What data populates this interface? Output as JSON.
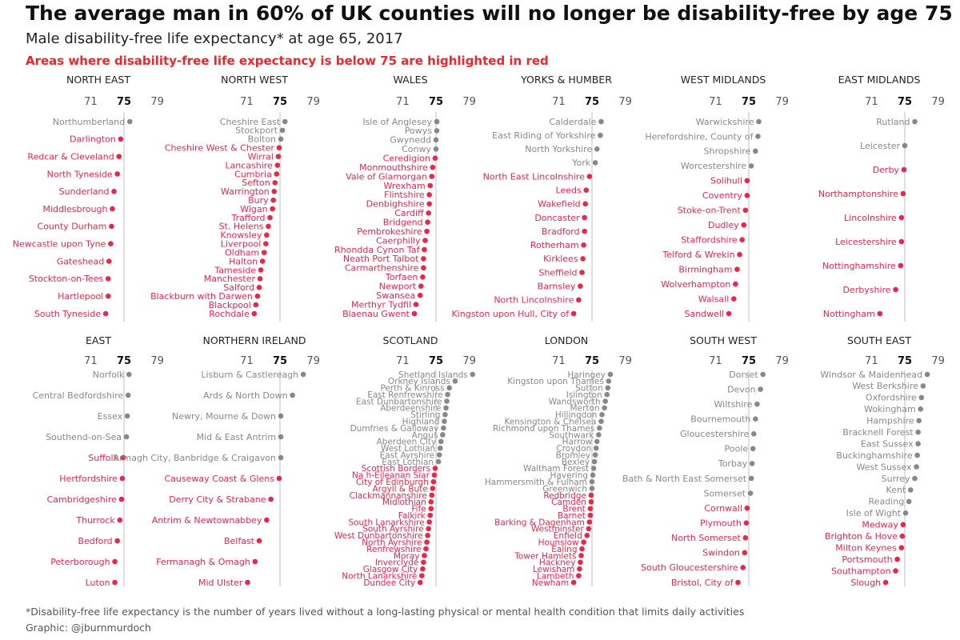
{
  "header": {
    "title": "The average man in 60% of UK counties will no longer be disability-free by age 75",
    "subtitle": "Male disability-free life expectancy* at age 65, 2017",
    "highlight_note": "Areas where disability-free life expectancy is below 75 are highlighted in red"
  },
  "footer": {
    "footnote": "*Disability-free life expectancy is the number of years lived without a long-lasting physical or mental health condition that limits daily activities",
    "credit": "Graphic: @jburnmurdoch"
  },
  "colors": {
    "below_75": "#e8284a",
    "above_75": "#888888",
    "reference_line": "#cccccc"
  },
  "chart_data": [
    {
      "type": "scatter",
      "title": "NORTH EAST",
      "xticks": [
        71,
        75,
        79
      ],
      "reference_x": 75,
      "labels": [
        "Northumberland",
        "Darlington",
        "Redcar & Cleveland",
        "North Tyneside",
        "Sunderland",
        "Middlesbrough",
        "County Durham",
        "Newcastle upon Tyne",
        "Gateshead",
        "Stockton-on-Tees",
        "Hartlepool",
        "South Tyneside"
      ],
      "values": [
        75.7,
        74.6,
        74.4,
        74.2,
        73.8,
        73.6,
        73.5,
        73.4,
        73.2,
        73.1,
        73.1,
        72.8
      ]
    },
    {
      "type": "scatter",
      "title": "NORTH WEST",
      "xticks": [
        71,
        75,
        79
      ],
      "reference_x": 75,
      "labels": [
        "Cheshire East",
        "Stockport",
        "Bolton",
        "Cheshire West & Chester",
        "Wirral",
        "Lancashire",
        "Cumbria",
        "Sefton",
        "Warrington",
        "Bury",
        "Wigan",
        "Trafford",
        "St. Helens",
        "Knowsley",
        "Liverpool",
        "Oldham",
        "Halton",
        "Tameside",
        "Manchester",
        "Salford",
        "Blackburn with Darwen",
        "Blackpool",
        "Rochdale"
      ],
      "values": [
        75.6,
        75.3,
        75.1,
        74.9,
        74.8,
        74.7,
        74.6,
        74.4,
        74.3,
        74.2,
        74.1,
        73.8,
        73.6,
        73.4,
        73.3,
        73.1,
        72.9,
        72.7,
        72.6,
        72.5,
        72.3,
        72.1,
        71.9
      ]
    },
    {
      "type": "scatter",
      "title": "WALES",
      "xticks": [
        71,
        75,
        79
      ],
      "reference_x": 75,
      "labels": [
        "Isle of Anglesey",
        "Powys",
        "Gwynedd",
        "Conwy",
        "Ceredigion",
        "Monmouthshire",
        "Vale of Glamorgan",
        "Wrexham",
        "Flintshire",
        "Denbighshire",
        "Cardiff",
        "Bridgend",
        "Pembrokeshire",
        "Caerphilly",
        "Rhondda Cynon Taf",
        "Neath Port Talbot",
        "Carmarthenshire",
        "Torfaen",
        "Newport",
        "Swansea",
        "Merthyr Tydfil",
        "Blaenau Gwent"
      ],
      "values": [
        75.1,
        75.1,
        75.0,
        75.0,
        74.9,
        74.6,
        74.5,
        74.3,
        74.2,
        74.2,
        74.1,
        74.0,
        73.9,
        73.7,
        73.6,
        73.5,
        73.5,
        73.4,
        73.2,
        73.1,
        72.6,
        72.4
      ]
    },
    {
      "type": "scatter",
      "title": "YORKS & HUMBER",
      "xticks": [
        71,
        75,
        79
      ],
      "reference_x": 75,
      "labels": [
        "Calderdale",
        "East Riding of Yorkshire",
        "North Yorkshire",
        "York",
        "North East Lincolnshire",
        "Leeds",
        "Wakefield",
        "Doncaster",
        "Bradford",
        "Rotherham",
        "Kirklees",
        "Sheffield",
        "Barnsley",
        "North Lincolnshire",
        "Kingston upon Hull, City of"
      ],
      "values": [
        76.1,
        76.0,
        75.6,
        75.4,
        74.7,
        74.3,
        74.2,
        74.1,
        74.1,
        74.0,
        73.9,
        73.8,
        73.6,
        73.4,
        72.8
      ]
    },
    {
      "type": "scatter",
      "title": "WEST MIDLANDS",
      "xticks": [
        71,
        75,
        79
      ],
      "reference_x": 75,
      "labels": [
        "Warwickshire",
        "Herefordshire, County of",
        "Shropshire",
        "Worcestershire",
        "Solihull",
        "Coventry",
        "Stoke-on-Trent",
        "Dudley",
        "Staffordshire",
        "Telford & Wrekin",
        "Birmingham",
        "Wolverhampton",
        "Walsall",
        "Sandwell"
      ],
      "values": [
        76.2,
        76.1,
        75.8,
        75.3,
        74.8,
        74.8,
        74.6,
        74.4,
        74.2,
        73.9,
        73.6,
        73.4,
        73.2,
        72.6
      ]
    },
    {
      "type": "scatter",
      "title": "EAST MIDLANDS",
      "xticks": [
        71,
        75,
        79
      ],
      "reference_x": 75,
      "labels": [
        "Rutland",
        "Leicester",
        "Derby",
        "Northamptonshire",
        "Lincolnshire",
        "Leicestershire",
        "Nottinghamshire",
        "Derbyshire",
        "Nottingham"
      ],
      "values": [
        76.2,
        75.0,
        74.9,
        74.8,
        74.6,
        74.6,
        74.5,
        73.9,
        72.0
      ]
    },
    {
      "type": "scatter",
      "title": "EAST",
      "xticks": [
        71,
        75,
        79
      ],
      "reference_x": 75,
      "labels": [
        "Norfolk",
        "Central Bedfordshire",
        "Essex",
        "Southend-on-Sea",
        "Suffolk",
        "Hertfordshire",
        "Cambridgeshire",
        "Thurrock",
        "Bedford",
        "Peterborough",
        "Luton"
      ],
      "values": [
        75.6,
        75.5,
        75.4,
        75.3,
        74.9,
        74.8,
        74.7,
        74.5,
        74.2,
        73.9,
        73.9
      ]
    },
    {
      "type": "scatter",
      "title": "NORTHERN IRELAND",
      "xticks": [
        71,
        75,
        79
      ],
      "reference_x": 75,
      "labels": [
        "Lisburn & Castlereagh",
        "Ards & North Down",
        "Newry, Mourne & Down",
        "Mid & East Antrim",
        "Armagh City, Banbridge & Craigavon",
        "Causeway Coast & Glens",
        "Derry City & Strabane",
        "Antrim & Newtownabbey",
        "Belfast",
        "Fermanagh & Omagh",
        "Mid Ulster"
      ],
      "values": [
        77.8,
        76.5,
        75.1,
        75.1,
        75.1,
        74.9,
        73.9,
        73.4,
        72.5,
        72.0,
        71.1
      ]
    },
    {
      "type": "scatter",
      "title": "SCOTLAND",
      "xticks": [
        71,
        75,
        79
      ],
      "reference_x": 75,
      "labels": [
        "Shetland Islands",
        "Orkney Islands",
        "Perth & Kinross",
        "East Renfrewshire",
        "East Dunbartonshire",
        "Aberdeenshire",
        "Stirling",
        "Highland",
        "Dumfries & Galloway",
        "Angus",
        "Aberdeen City",
        "West Lothian",
        "East Ayrshire",
        "East Lothian",
        "Scottish Borders",
        "Na h-Eileanan Siar",
        "City of Edinburgh",
        "Argyll & Bute",
        "Clackmannanshire",
        "Midlothian",
        "Fife",
        "Falkirk",
        "South Lanarkshire",
        "South Ayrshire",
        "West Dunbartonshire",
        "North Ayrshire",
        "Renfrewshire",
        "Moray",
        "Inverclyde",
        "Glasgow City",
        "North Lanarkshire",
        "Dundee City"
      ],
      "values": [
        79.4,
        77.3,
        76.6,
        76.4,
        76.3,
        76.2,
        76.1,
        76.0,
        75.9,
        75.8,
        75.6,
        75.5,
        75.4,
        75.3,
        74.9,
        74.8,
        74.7,
        74.6,
        74.5,
        74.4,
        74.4,
        74.3,
        74.2,
        74.1,
        74.0,
        73.9,
        73.8,
        73.6,
        73.5,
        73.4,
        73.3,
        73.1
      ]
    },
    {
      "type": "scatter",
      "title": "LONDON",
      "xticks": [
        71,
        75,
        79
      ],
      "reference_x": 75,
      "labels": [
        "Haringey",
        "Kingston upon Thames",
        "Sutton",
        "Islington",
        "Wandsworth",
        "Merton",
        "Hillingdon",
        "Kensington & Chelsea",
        "Richmond upon Thames",
        "Southwark",
        "Harrow",
        "Croydon",
        "Bromley",
        "Bexley",
        "Waltham Forest",
        "Havering",
        "Hammersmith & Fulham",
        "Greenwich",
        "Redbridge",
        "Camden",
        "Brent",
        "Barnet",
        "Barking & Dagenham",
        "Westminster",
        "Enfield",
        "Hounslow",
        "Ealing",
        "Tower Hamlets",
        "Hackney",
        "Lewisham",
        "Lambeth",
        "Newham"
      ],
      "values": [
        77.2,
        77.0,
        76.9,
        76.8,
        76.6,
        76.5,
        76.2,
        76.1,
        75.9,
        75.8,
        75.6,
        75.5,
        75.4,
        75.3,
        75.2,
        75.1,
        75.0,
        75.0,
        74.9,
        74.9,
        74.8,
        74.8,
        74.7,
        74.6,
        74.4,
        74.0,
        73.8,
        73.7,
        73.6,
        73.5,
        73.4,
        72.8
      ]
    },
    {
      "type": "scatter",
      "title": "SOUTH WEST",
      "xticks": [
        71,
        75,
        79
      ],
      "reference_x": 75,
      "labels": [
        "Dorset",
        "Devon",
        "Wiltshire",
        "Bournemouth",
        "Gloucestershire",
        "Poole",
        "Torbay",
        "Bath & North East Somerset",
        "Somerset",
        "Cornwall",
        "Plymouth",
        "North Somerset",
        "Swindon",
        "South Gloucestershire",
        "Bristol, City of"
      ],
      "values": [
        76.7,
        76.4,
        76.0,
        75.8,
        75.6,
        75.5,
        75.4,
        75.3,
        75.2,
        74.8,
        74.7,
        74.6,
        74.5,
        74.3,
        73.7
      ]
    },
    {
      "type": "scatter",
      "title": "SOUTH EAST",
      "xticks": [
        71,
        75,
        79
      ],
      "reference_x": 75,
      "labels": [
        "Windsor & Maidenhead",
        "West Berkshire",
        "Oxfordshire",
        "Wokingham",
        "Hampshire",
        "Bracknell Forest",
        "East Sussex",
        "Buckinghamshire",
        "West Sussex",
        "Surrey",
        "Kent",
        "Reading",
        "Isle of Wight",
        "Medway",
        "Brighton & Hove",
        "Milton Keynes",
        "Portsmouth",
        "Southampton",
        "Slough"
      ],
      "values": [
        77.7,
        77.2,
        77.0,
        76.9,
        76.7,
        76.6,
        76.6,
        76.5,
        76.4,
        76.2,
        75.7,
        75.5,
        75.1,
        74.8,
        74.7,
        74.6,
        74.1,
        73.9,
        72.7
      ]
    }
  ]
}
